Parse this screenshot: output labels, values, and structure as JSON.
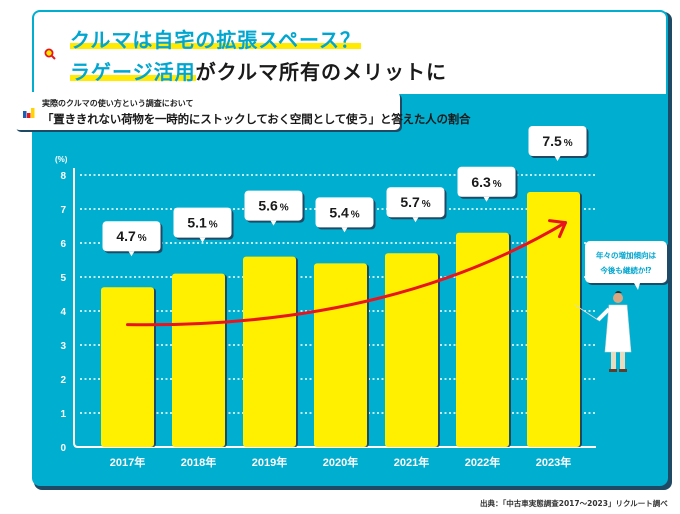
{
  "header": {
    "headline_line1": "クルマは自宅の拡張スペース？",
    "headline_line2_highlight": "ラゲージ活用",
    "headline_line2_rest": "がクルマ所有のメリットに",
    "accent_color": "#00a6cf",
    "highlight_color": "#ffea00"
  },
  "subtitle": {
    "small": "実際のクルマの使い方という調査において",
    "main": "「置ききれない荷物を一時的にストックしておく空間として使う」と答えた人の割合"
  },
  "callout": {
    "line1": "年々の増加傾向は",
    "line2": "今後も継続か⁉"
  },
  "source": "出典：「中古車実態調査2017～2023」リクルート調べ",
  "colors": {
    "panel": "#00aed0",
    "bar": "#fff000",
    "shadow": "#1f4a66",
    "trend_arrow": "#e8141e"
  },
  "chart_data": {
    "type": "bar",
    "title": "「置ききれない荷物を一時的にストックしておく空間として使う」と答えた人の割合",
    "xlabel": "",
    "ylabel": "(%)",
    "unit_label": "(%)",
    "ylim": [
      0,
      8
    ],
    "yticks": [
      0,
      1,
      2,
      3,
      4,
      5,
      6,
      7,
      8
    ],
    "grid": true,
    "categories": [
      "2017年",
      "2018年",
      "2019年",
      "2020年",
      "2021年",
      "2022年",
      "2023年"
    ],
    "values": [
      4.7,
      5.1,
      5.6,
      5.4,
      5.7,
      6.3,
      7.5
    ],
    "data_labels": [
      "4.7",
      "5.1",
      "5.6",
      "5.4",
      "5.7",
      "6.3",
      "7.5"
    ],
    "label_suffix": "%",
    "trend": {
      "type": "curved-arrow",
      "direction": "increasing",
      "from_category": "2017年",
      "to_category": "2023年"
    },
    "legend": "none"
  }
}
